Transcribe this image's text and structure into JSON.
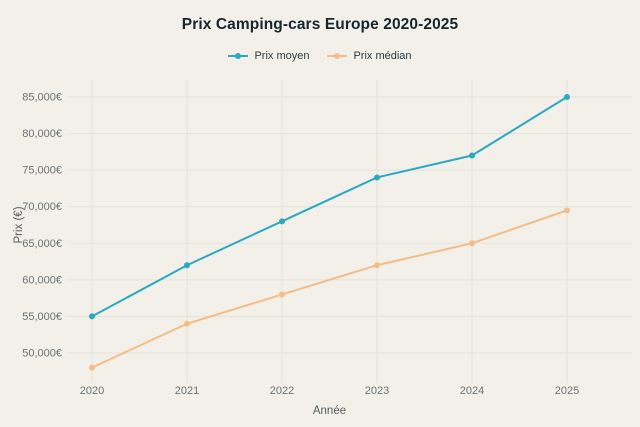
{
  "title": "Prix Camping-cars Europe 2020-2025",
  "colors": {
    "background": "#f2f0e9",
    "title_text": "#16262e",
    "grid": "#e4e3db",
    "tick_text": "#6b7276",
    "axis_title_text": "#555e63",
    "series_moyen": "#2aa9c1",
    "series_median": "#f4bd87"
  },
  "legend": {
    "items": [
      {
        "label": "Prix moyen",
        "color": "#2aa9c1"
      },
      {
        "label": "Prix médian",
        "color": "#f4bd87"
      }
    ]
  },
  "chart_data": {
    "type": "line",
    "title": "Prix Camping-cars Europe 2020-2025",
    "x": [
      2020,
      2021,
      2022,
      2023,
      2024,
      2025
    ],
    "xtick_labels": [
      "2020",
      "2021",
      "2022",
      "2023",
      "2024",
      "2025"
    ],
    "series": [
      {
        "name": "Prix moyen",
        "color": "#2aa9c1",
        "values": [
          55000,
          62000,
          68000,
          74000,
          77000,
          85000
        ]
      },
      {
        "name": "Prix médian",
        "color": "#f4bd87",
        "values": [
          48000,
          54000,
          58000,
          62000,
          65000,
          69500
        ]
      }
    ],
    "xlabel": "Année",
    "ylabel": "Prix (€)",
    "yticks": [
      50000,
      55000,
      60000,
      65000,
      70000,
      75000,
      80000,
      85000
    ],
    "ytick_labels": [
      "50,000€",
      "55,000€",
      "60,000€",
      "65,000€",
      "70,000€",
      "75,000€",
      "80,000€",
      "85,000€"
    ],
    "ylim": [
      48000,
      85000
    ],
    "grid": true,
    "legend_position": "top",
    "marker": "dot"
  }
}
